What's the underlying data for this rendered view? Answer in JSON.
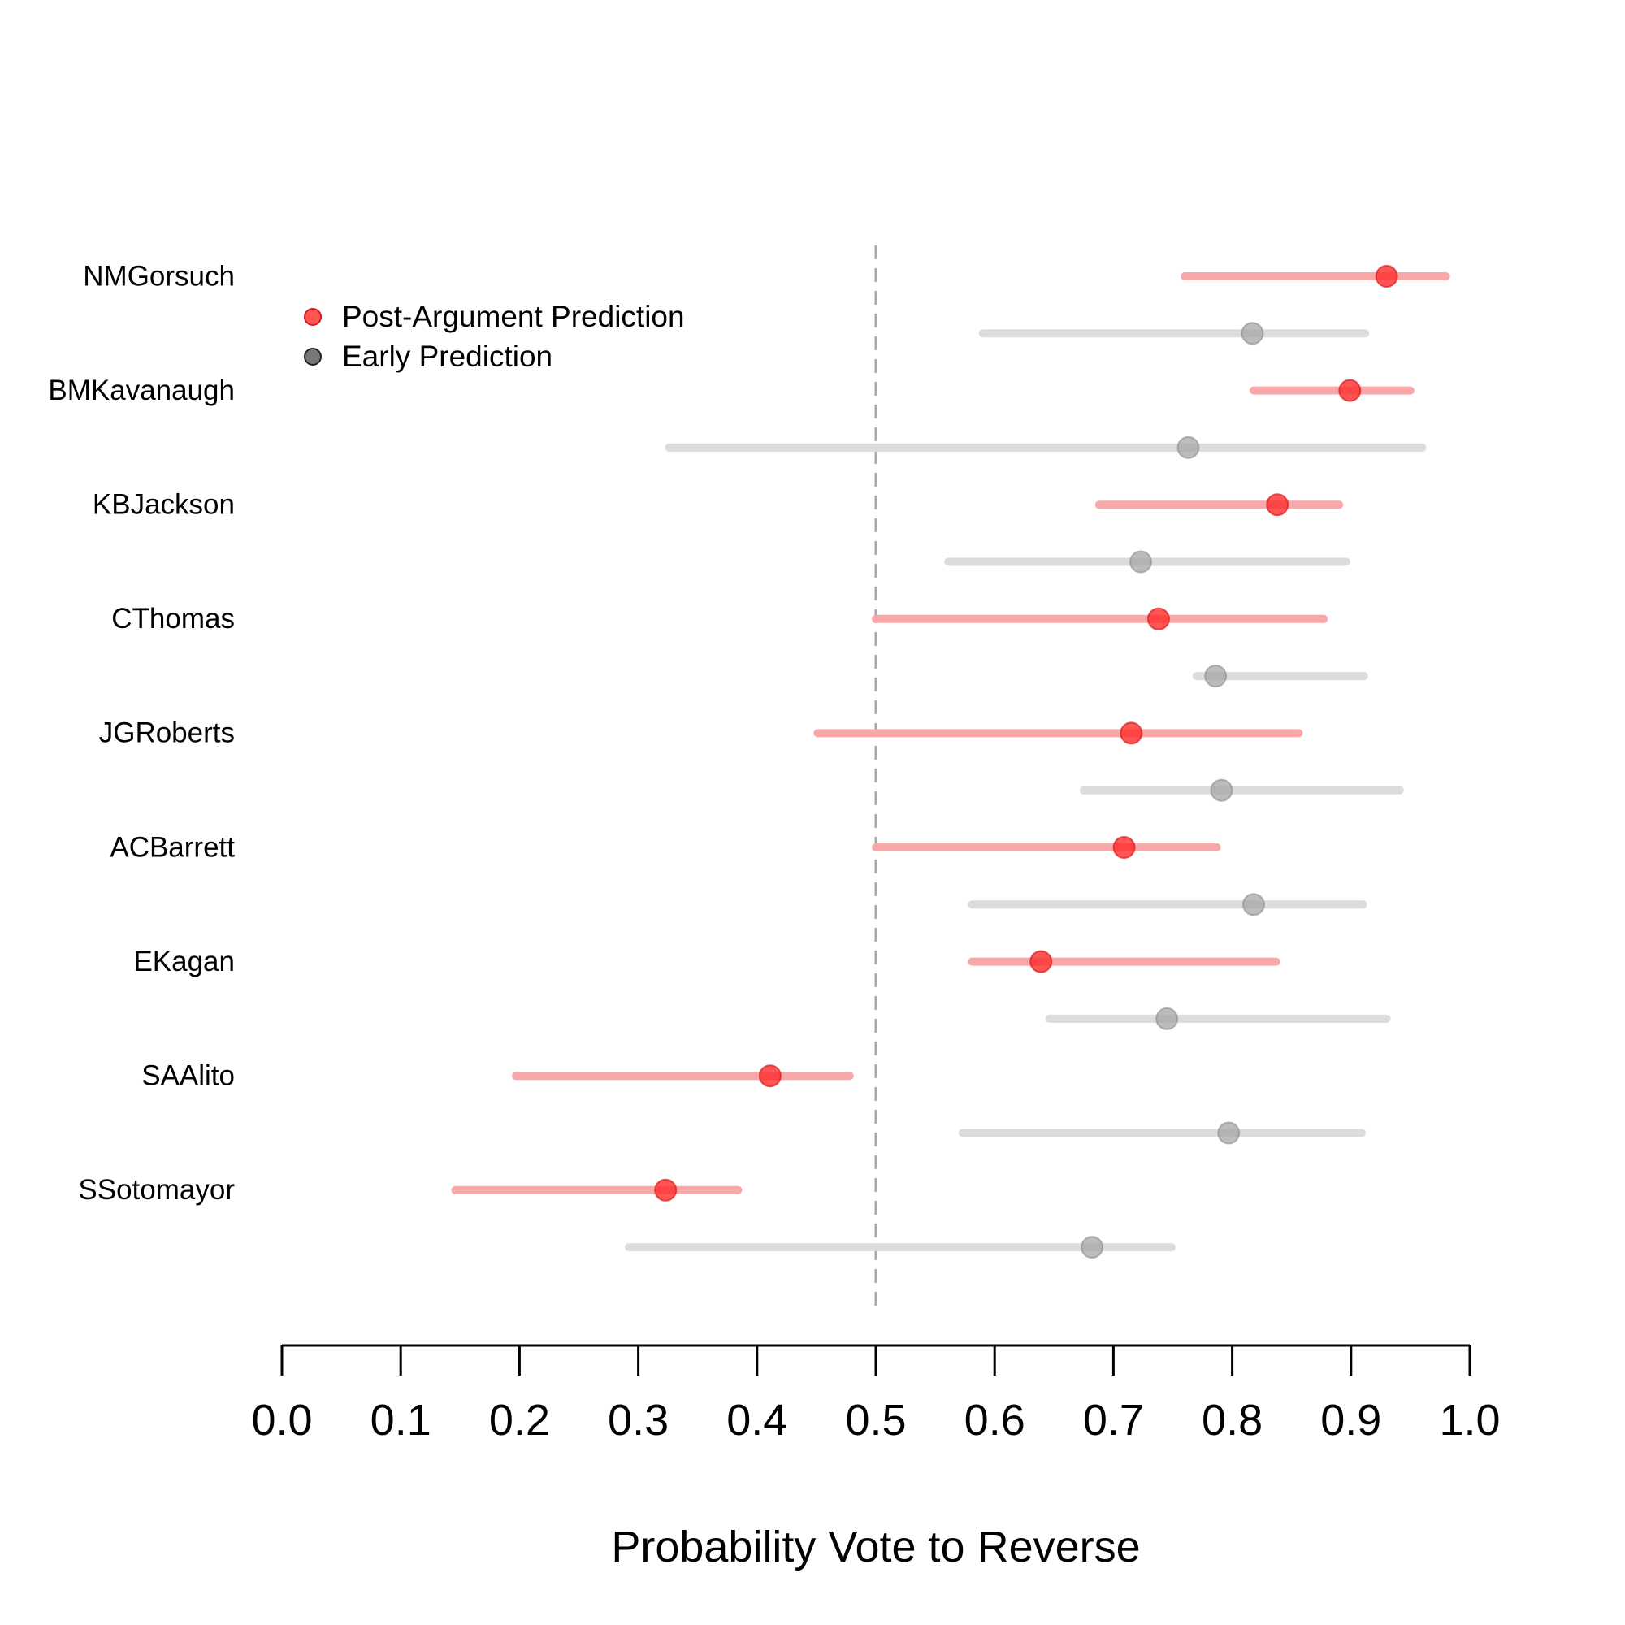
{
  "chart_data": {
    "type": "scatter",
    "subtype": "dot-and-interval (forest plot)",
    "xlabel": "Probability Vote to Reverse",
    "xlim": [
      0.0,
      1.0
    ],
    "xticks": [
      "0.0",
      "0.1",
      "0.2",
      "0.3",
      "0.4",
      "0.5",
      "0.6",
      "0.7",
      "0.8",
      "0.9",
      "1.0"
    ],
    "reference_line": {
      "x": 0.5,
      "style": "dashed",
      "color": "#a8a8a8"
    },
    "grid": false,
    "legend": {
      "position": "top-left",
      "entries": [
        {
          "label": "Post-Argument Prediction",
          "color": "#ff2a2a"
        },
        {
          "label": "Early Prediction",
          "color": "#555555"
        }
      ]
    },
    "colors": {
      "post_point": "#ff2a2a",
      "post_interval": "#f9a8aa",
      "early_point": "#a6a6a6",
      "early_interval": "#dcdcdc"
    },
    "justices": [
      {
        "name": "NMGorsuch",
        "post": {
          "est": 0.93,
          "lo": 0.76,
          "hi": 0.98
        },
        "early": {
          "est": 0.817,
          "lo": 0.59,
          "hi": 0.912
        }
      },
      {
        "name": "BMKavanaugh",
        "post": {
          "est": 0.899,
          "lo": 0.818,
          "hi": 0.95
        },
        "early": {
          "est": 0.763,
          "lo": 0.326,
          "hi": 0.96
        }
      },
      {
        "name": "KBJackson",
        "post": {
          "est": 0.838,
          "lo": 0.688,
          "hi": 0.89
        },
        "early": {
          "est": 0.723,
          "lo": 0.561,
          "hi": 0.896
        }
      },
      {
        "name": "CThomas",
        "post": {
          "est": 0.738,
          "lo": 0.5,
          "hi": 0.877
        },
        "early": {
          "est": 0.786,
          "lo": 0.77,
          "hi": 0.911
        }
      },
      {
        "name": "JGRoberts",
        "post": {
          "est": 0.715,
          "lo": 0.451,
          "hi": 0.856
        },
        "early": {
          "est": 0.791,
          "lo": 0.675,
          "hi": 0.941
        }
      },
      {
        "name": "ACBarrett",
        "post": {
          "est": 0.709,
          "lo": 0.5,
          "hi": 0.787
        },
        "early": {
          "est": 0.818,
          "lo": 0.581,
          "hi": 0.91
        }
      },
      {
        "name": "EKagan",
        "post": {
          "est": 0.639,
          "lo": 0.581,
          "hi": 0.837
        },
        "early": {
          "est": 0.745,
          "lo": 0.646,
          "hi": 0.93
        }
      },
      {
        "name": "SAAlito",
        "post": {
          "est": 0.411,
          "lo": 0.197,
          "hi": 0.478
        },
        "early": {
          "est": 0.797,
          "lo": 0.573,
          "hi": 0.909
        }
      },
      {
        "name": "SSotomayor",
        "post": {
          "est": 0.323,
          "lo": 0.146,
          "hi": 0.384
        },
        "early": {
          "est": 0.682,
          "lo": 0.292,
          "hi": 0.749
        }
      }
    ]
  }
}
